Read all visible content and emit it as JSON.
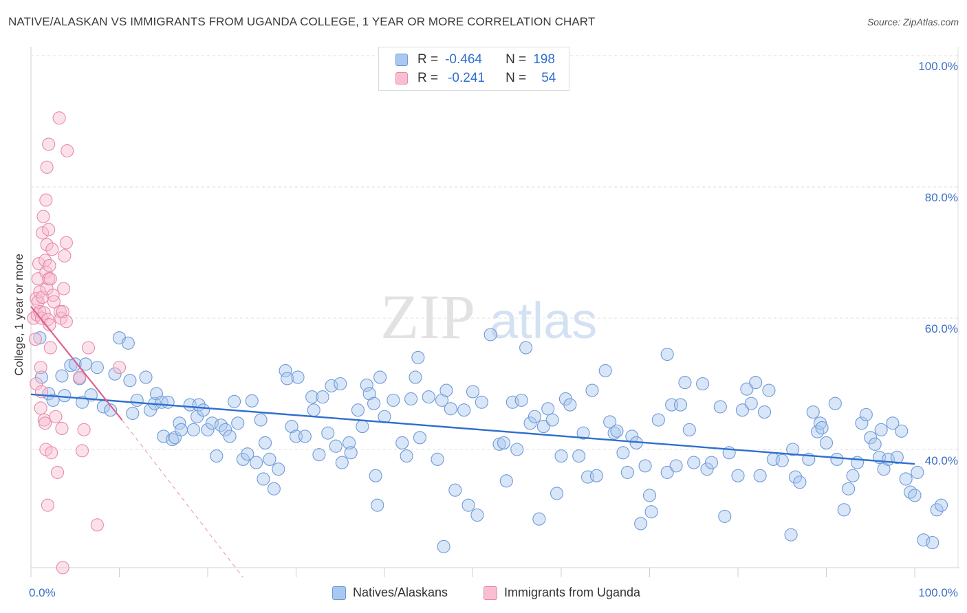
{
  "header": {
    "title": "NATIVE/ALASKAN VS IMMIGRANTS FROM UGANDA COLLEGE, 1 YEAR OR MORE CORRELATION CHART",
    "source": "Source: ZipAtlas.com"
  },
  "legend_top": {
    "rows": [
      {
        "r_label": "R =",
        "r_value": "-0.464",
        "n_label": "N =",
        "n_value": "198"
      },
      {
        "r_label": "R =",
        "r_value": "-0.241",
        "n_label": "N =",
        "n_value": "54"
      }
    ]
  },
  "watermark": {
    "zip": "ZIP",
    "atlas": "atlas"
  },
  "colors": {
    "blue_fill": "#aac8ef",
    "blue_stroke": "#6d9ad8",
    "blue_line": "#2e6fd0",
    "pink_fill": "#f7bfd0",
    "pink_stroke": "#e889a8",
    "pink_line": "#e0608e",
    "axis_label": "#3a6fc4",
    "grid": "#dddddd"
  },
  "chart_data": {
    "type": "scatter",
    "title": "NATIVE/ALASKAN VS IMMIGRANTS FROM UGANDA COLLEGE, 1 YEAR OR MORE CORRELATION CHART",
    "xlabel": "",
    "ylabel": "College, 1 year or more",
    "xlim": [
      0,
      1
    ],
    "ylim": [
      0.2,
      1.02
    ],
    "x_tick_labels": [
      "0.0%",
      "100.0%"
    ],
    "y_ticks": [
      0.4,
      0.6,
      0.8,
      1.0
    ],
    "y_tick_labels": [
      "40.0%",
      "60.0%",
      "80.0%",
      "100.0%"
    ],
    "grid": true,
    "legend_position": "bottom",
    "series": [
      {
        "name": "Natives/Alaskans",
        "r": -0.464,
        "n": 198,
        "trend": {
          "x0": 0.0,
          "y0": 0.484,
          "x1": 1.0,
          "y1": 0.378
        },
        "points": [
          [
            0.01,
            0.57
          ],
          [
            0.012,
            0.51
          ],
          [
            0.02,
            0.485
          ],
          [
            0.025,
            0.475
          ],
          [
            0.035,
            0.512
          ],
          [
            0.038,
            0.482
          ],
          [
            0.045,
            0.528
          ],
          [
            0.05,
            0.53
          ],
          [
            0.055,
            0.508
          ],
          [
            0.058,
            0.472
          ],
          [
            0.062,
            0.53
          ],
          [
            0.068,
            0.483
          ],
          [
            0.075,
            0.525
          ],
          [
            0.082,
            0.465
          ],
          [
            0.09,
            0.46
          ],
          [
            0.095,
            0.515
          ],
          [
            0.1,
            0.57
          ],
          [
            0.11,
            0.562
          ],
          [
            0.112,
            0.505
          ],
          [
            0.115,
            0.455
          ],
          [
            0.12,
            0.475
          ],
          [
            0.13,
            0.51
          ],
          [
            0.135,
            0.46
          ],
          [
            0.14,
            0.47
          ],
          [
            0.142,
            0.485
          ],
          [
            0.148,
            0.472
          ],
          [
            0.15,
            0.42
          ],
          [
            0.155,
            0.472
          ],
          [
            0.16,
            0.415
          ],
          [
            0.163,
            0.418
          ],
          [
            0.168,
            0.44
          ],
          [
            0.17,
            0.43
          ],
          [
            0.18,
            0.468
          ],
          [
            0.184,
            0.43
          ],
          [
            0.188,
            0.45
          ],
          [
            0.19,
            0.468
          ],
          [
            0.195,
            0.46
          ],
          [
            0.2,
            0.43
          ],
          [
            0.205,
            0.44
          ],
          [
            0.21,
            0.39
          ],
          [
            0.215,
            0.437
          ],
          [
            0.22,
            0.43
          ],
          [
            0.225,
            0.42
          ],
          [
            0.23,
            0.473
          ],
          [
            0.234,
            0.44
          ],
          [
            0.24,
            0.385
          ],
          [
            0.245,
            0.393
          ],
          [
            0.25,
            0.474
          ],
          [
            0.255,
            0.38
          ],
          [
            0.26,
            0.445
          ],
          [
            0.263,
            0.355
          ],
          [
            0.265,
            0.41
          ],
          [
            0.27,
            0.385
          ],
          [
            0.275,
            0.34
          ],
          [
            0.28,
            0.37
          ],
          [
            0.288,
            0.52
          ],
          [
            0.29,
            0.508
          ],
          [
            0.295,
            0.435
          ],
          [
            0.3,
            0.42
          ],
          [
            0.302,
            0.51
          ],
          [
            0.31,
            0.42
          ],
          [
            0.318,
            0.48
          ],
          [
            0.32,
            0.46
          ],
          [
            0.326,
            0.392
          ],
          [
            0.33,
            0.48
          ],
          [
            0.336,
            0.425
          ],
          [
            0.34,
            0.497
          ],
          [
            0.345,
            0.405
          ],
          [
            0.35,
            0.5
          ],
          [
            0.352,
            0.38
          ],
          [
            0.36,
            0.41
          ],
          [
            0.362,
            0.395
          ],
          [
            0.37,
            0.46
          ],
          [
            0.375,
            0.435
          ],
          [
            0.38,
            0.498
          ],
          [
            0.383,
            0.485
          ],
          [
            0.388,
            0.47
          ],
          [
            0.39,
            0.36
          ],
          [
            0.392,
            0.315
          ],
          [
            0.395,
            0.51
          ],
          [
            0.4,
            0.45
          ],
          [
            0.41,
            0.475
          ],
          [
            0.42,
            0.41
          ],
          [
            0.425,
            0.39
          ],
          [
            0.43,
            0.477
          ],
          [
            0.435,
            0.51
          ],
          [
            0.438,
            0.54
          ],
          [
            0.44,
            0.418
          ],
          [
            0.45,
            0.48
          ],
          [
            0.46,
            0.385
          ],
          [
            0.465,
            0.475
          ],
          [
            0.467,
            0.252
          ],
          [
            0.47,
            0.49
          ],
          [
            0.475,
            0.462
          ],
          [
            0.48,
            0.338
          ],
          [
            0.49,
            0.46
          ],
          [
            0.495,
            0.315
          ],
          [
            0.5,
            0.488
          ],
          [
            0.505,
            0.3
          ],
          [
            0.51,
            0.472
          ],
          [
            0.52,
            0.575
          ],
          [
            0.53,
            0.408
          ],
          [
            0.535,
            0.41
          ],
          [
            0.538,
            0.352
          ],
          [
            0.545,
            0.472
          ],
          [
            0.55,
            0.4
          ],
          [
            0.555,
            0.475
          ],
          [
            0.56,
            0.555
          ],
          [
            0.565,
            0.44
          ],
          [
            0.57,
            0.45
          ],
          [
            0.575,
            0.294
          ],
          [
            0.58,
            0.435
          ],
          [
            0.585,
            0.462
          ],
          [
            0.59,
            0.445
          ],
          [
            0.595,
            0.333
          ],
          [
            0.6,
            0.39
          ],
          [
            0.605,
            0.477
          ],
          [
            0.61,
            0.468
          ],
          [
            0.62,
            0.39
          ],
          [
            0.625,
            0.425
          ],
          [
            0.63,
            0.358
          ],
          [
            0.635,
            0.49
          ],
          [
            0.64,
            0.36
          ],
          [
            0.65,
            0.52
          ],
          [
            0.655,
            0.442
          ],
          [
            0.66,
            0.425
          ],
          [
            0.663,
            0.428
          ],
          [
            0.67,
            0.395
          ],
          [
            0.675,
            0.365
          ],
          [
            0.68,
            0.42
          ],
          [
            0.685,
            0.41
          ],
          [
            0.69,
            0.287
          ],
          [
            0.695,
            0.375
          ],
          [
            0.7,
            0.33
          ],
          [
            0.702,
            0.305
          ],
          [
            0.71,
            0.445
          ],
          [
            0.72,
            0.365
          ],
          [
            0.72,
            0.545
          ],
          [
            0.725,
            0.468
          ],
          [
            0.73,
            0.375
          ],
          [
            0.735,
            0.468
          ],
          [
            0.74,
            0.502
          ],
          [
            0.745,
            0.43
          ],
          [
            0.75,
            0.38
          ],
          [
            0.76,
            0.5
          ],
          [
            0.765,
            0.37
          ],
          [
            0.77,
            0.38
          ],
          [
            0.78,
            0.465
          ],
          [
            0.785,
            0.298
          ],
          [
            0.79,
            0.395
          ],
          [
            0.8,
            0.36
          ],
          [
            0.805,
            0.46
          ],
          [
            0.81,
            0.492
          ],
          [
            0.815,
            0.47
          ],
          [
            0.82,
            0.502
          ],
          [
            0.825,
            0.36
          ],
          [
            0.83,
            0.457
          ],
          [
            0.835,
            0.49
          ],
          [
            0.84,
            0.385
          ],
          [
            0.85,
            0.383
          ],
          [
            0.86,
            0.27
          ],
          [
            0.862,
            0.4
          ],
          [
            0.865,
            0.358
          ],
          [
            0.87,
            0.35
          ],
          [
            0.88,
            0.385
          ],
          [
            0.885,
            0.457
          ],
          [
            0.89,
            0.427
          ],
          [
            0.893,
            0.44
          ],
          [
            0.895,
            0.433
          ],
          [
            0.9,
            0.41
          ],
          [
            0.91,
            0.47
          ],
          [
            0.912,
            0.385
          ],
          [
            0.92,
            0.308
          ],
          [
            0.925,
            0.34
          ],
          [
            0.93,
            0.36
          ],
          [
            0.935,
            0.38
          ],
          [
            0.94,
            0.44
          ],
          [
            0.945,
            0.453
          ],
          [
            0.95,
            0.418
          ],
          [
            0.955,
            0.408
          ],
          [
            0.96,
            0.388
          ],
          [
            0.962,
            0.43
          ],
          [
            0.965,
            0.37
          ],
          [
            0.97,
            0.385
          ],
          [
            0.975,
            0.44
          ],
          [
            0.98,
            0.388
          ],
          [
            0.985,
            0.428
          ],
          [
            0.99,
            0.355
          ],
          [
            0.995,
            0.335
          ],
          [
            1.0,
            0.33
          ],
          [
            1.003,
            0.365
          ],
          [
            1.01,
            0.262
          ],
          [
            1.02,
            0.258
          ],
          [
            1.025,
            0.308
          ],
          [
            1.03,
            0.315
          ]
        ]
      },
      {
        "name": "Immigrants from Uganda",
        "r": -0.241,
        "n": 54,
        "trend": {
          "x0": 0.0,
          "y0": 0.618,
          "x1": 0.103,
          "y1": 0.445
        },
        "trend_extended": {
          "x0": 0.103,
          "y0": 0.445,
          "x1": 0.24,
          "y1": 0.205
        },
        "points": [
          [
            0.003,
            0.6
          ],
          [
            0.005,
            0.568
          ],
          [
            0.006,
            0.63
          ],
          [
            0.006,
            0.5
          ],
          [
            0.007,
            0.605
          ],
          [
            0.008,
            0.625
          ],
          [
            0.008,
            0.66
          ],
          [
            0.009,
            0.683
          ],
          [
            0.01,
            0.61
          ],
          [
            0.01,
            0.64
          ],
          [
            0.011,
            0.525
          ],
          [
            0.011,
            0.463
          ],
          [
            0.012,
            0.488
          ],
          [
            0.012,
            0.6
          ],
          [
            0.013,
            0.632
          ],
          [
            0.013,
            0.73
          ],
          [
            0.014,
            0.755
          ],
          [
            0.015,
            0.445
          ],
          [
            0.015,
            0.608
          ],
          [
            0.016,
            0.688
          ],
          [
            0.016,
            0.44
          ],
          [
            0.017,
            0.78
          ],
          [
            0.017,
            0.67
          ],
          [
            0.017,
            0.4
          ],
          [
            0.018,
            0.83
          ],
          [
            0.018,
            0.645
          ],
          [
            0.018,
            0.712
          ],
          [
            0.019,
            0.598
          ],
          [
            0.019,
            0.315
          ],
          [
            0.02,
            0.865
          ],
          [
            0.02,
            0.735
          ],
          [
            0.02,
            0.66
          ],
          [
            0.021,
            0.59
          ],
          [
            0.021,
            0.68
          ],
          [
            0.022,
            0.555
          ],
          [
            0.022,
            0.66
          ],
          [
            0.023,
            0.395
          ],
          [
            0.024,
            0.705
          ],
          [
            0.025,
            0.635
          ],
          [
            0.026,
            0.625
          ],
          [
            0.028,
            0.45
          ],
          [
            0.03,
            0.365
          ],
          [
            0.032,
            0.905
          ],
          [
            0.033,
            0.61
          ],
          [
            0.034,
            0.6
          ],
          [
            0.035,
            0.432
          ],
          [
            0.036,
            0.22
          ],
          [
            0.036,
            0.61
          ],
          [
            0.037,
            0.645
          ],
          [
            0.038,
            0.695
          ],
          [
            0.04,
            0.715
          ],
          [
            0.04,
            0.595
          ],
          [
            0.041,
            0.855
          ],
          [
            0.055,
            0.51
          ],
          [
            0.058,
            0.398
          ],
          [
            0.06,
            0.43
          ],
          [
            0.065,
            0.555
          ],
          [
            0.075,
            0.285
          ],
          [
            0.1,
            0.525
          ]
        ]
      }
    ]
  },
  "legend_bottom": {
    "items": [
      {
        "label": "Natives/Alaskans"
      },
      {
        "label": "Immigrants from Uganda"
      }
    ]
  }
}
